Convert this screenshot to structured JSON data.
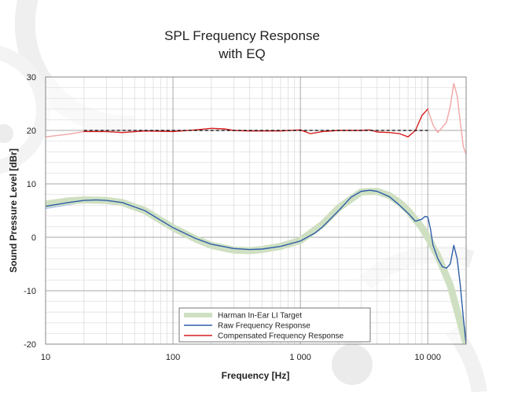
{
  "chart_data": {
    "type": "line",
    "title_lines": [
      "SPL Frequency Response",
      "with EQ"
    ],
    "xlabel": "Frequency [Hz]",
    "ylabel": "Sound Pressure Level [dBr]",
    "xscale": "log",
    "xlim": [
      10,
      20000
    ],
    "ylim": [
      -20,
      30
    ],
    "x_ticks": [
      {
        "value": 10,
        "label": "10"
      },
      {
        "value": 100,
        "label": "100"
      },
      {
        "value": 1000,
        "label": "1 000"
      },
      {
        "value": 10000,
        "label": "10 000"
      }
    ],
    "y_ticks": [
      {
        "value": 30,
        "label": "30"
      },
      {
        "value": 20,
        "label": "20"
      },
      {
        "value": 10,
        "label": "10"
      },
      {
        "value": 0,
        "label": "0"
      },
      {
        "value": -10,
        "label": "-10"
      },
      {
        "value": -20,
        "label": "-20"
      }
    ],
    "grid": true,
    "legend_position": "bottom-center",
    "series": [
      {
        "name": "Harman In-Ear LI Target",
        "color": "#cfe0c2",
        "style": "thick",
        "x": [
          10,
          15,
          20,
          30,
          40,
          60,
          100,
          150,
          200,
          300,
          400,
          500,
          700,
          1000,
          1500,
          2000,
          3000,
          4000,
          5000,
          6000,
          7000,
          8000,
          9000,
          10000,
          12000,
          15000,
          20000
        ],
        "y": [
          6.2,
          6.8,
          7.0,
          6.9,
          6.5,
          5.0,
          1.8,
          -0.3,
          -1.5,
          -2.4,
          -2.5,
          -2.3,
          -1.7,
          -0.6,
          2.5,
          5.5,
          8.5,
          8.6,
          7.8,
          6.5,
          5.0,
          3.3,
          1.8,
          0.0,
          -3.5,
          -9.0,
          -20.0
        ]
      },
      {
        "name": "Raw Frequency Response",
        "color": "#2e5ea8",
        "style": "thin",
        "x": [
          10,
          15,
          20,
          25,
          30,
          40,
          60,
          100,
          150,
          200,
          300,
          400,
          500,
          700,
          1000,
          1300,
          1500,
          2000,
          2500,
          3000,
          3500,
          4000,
          5000,
          6000,
          7000,
          8000,
          9000,
          9500,
          10000,
          10500,
          11000,
          12000,
          13000,
          14000,
          15000,
          16000,
          17000,
          18000,
          19000,
          20000
        ],
        "y": [
          5.8,
          6.5,
          6.9,
          7.0,
          6.9,
          6.5,
          5.0,
          1.8,
          -0.2,
          -1.3,
          -2.1,
          -2.3,
          -2.2,
          -1.7,
          -0.7,
          0.8,
          2.0,
          5.0,
          7.5,
          8.6,
          8.8,
          8.6,
          7.6,
          6.0,
          4.5,
          3.0,
          3.4,
          3.9,
          3.8,
          1.6,
          -1.5,
          -4.0,
          -5.5,
          -5.8,
          -5.0,
          -1.5,
          -4.0,
          -9.0,
          -15.0,
          -20.0
        ]
      },
      {
        "name": "Compensated Frequency Response",
        "color": "#d81e1e",
        "style": "thin",
        "x": [
          20,
          30,
          40,
          60,
          100,
          150,
          200,
          250,
          300,
          400,
          500,
          700,
          1000,
          1200,
          1500,
          2000,
          3000,
          3500,
          4000,
          5000,
          6000,
          7000,
          8000,
          9000,
          10000
        ],
        "y": [
          19.8,
          19.8,
          19.6,
          19.9,
          19.8,
          20.1,
          20.4,
          20.3,
          20.0,
          19.9,
          19.9,
          19.9,
          20.1,
          19.4,
          19.8,
          20.0,
          20.0,
          20.1,
          19.7,
          19.6,
          19.4,
          18.8,
          20.0,
          22.8,
          24.0
        ]
      }
    ],
    "unlabeled_lines": [
      {
        "color": "#f2a5a5",
        "style": "thin",
        "x": [
          10,
          15,
          20
        ],
        "y": [
          18.8,
          19.3,
          19.8
        ]
      },
      {
        "color": "#f2a5a5",
        "style": "thin",
        "x": [
          10000,
          11000,
          12000,
          13000,
          14000,
          15000,
          16000,
          17000,
          18000,
          19000,
          20000
        ],
        "y": [
          24.0,
          21.0,
          19.6,
          20.6,
          21.5,
          24.5,
          28.8,
          26.5,
          21.5,
          17.0,
          15.5
        ]
      },
      {
        "color": "#a9c2e8",
        "style": "thin",
        "x": [
          10,
          15,
          20
        ],
        "y": [
          5.4,
          6.1,
          6.6
        ]
      }
    ],
    "reference_line": {
      "y": 20,
      "x_from": 20,
      "x_to": 10000,
      "style": "dashed",
      "color": "#000000"
    }
  }
}
